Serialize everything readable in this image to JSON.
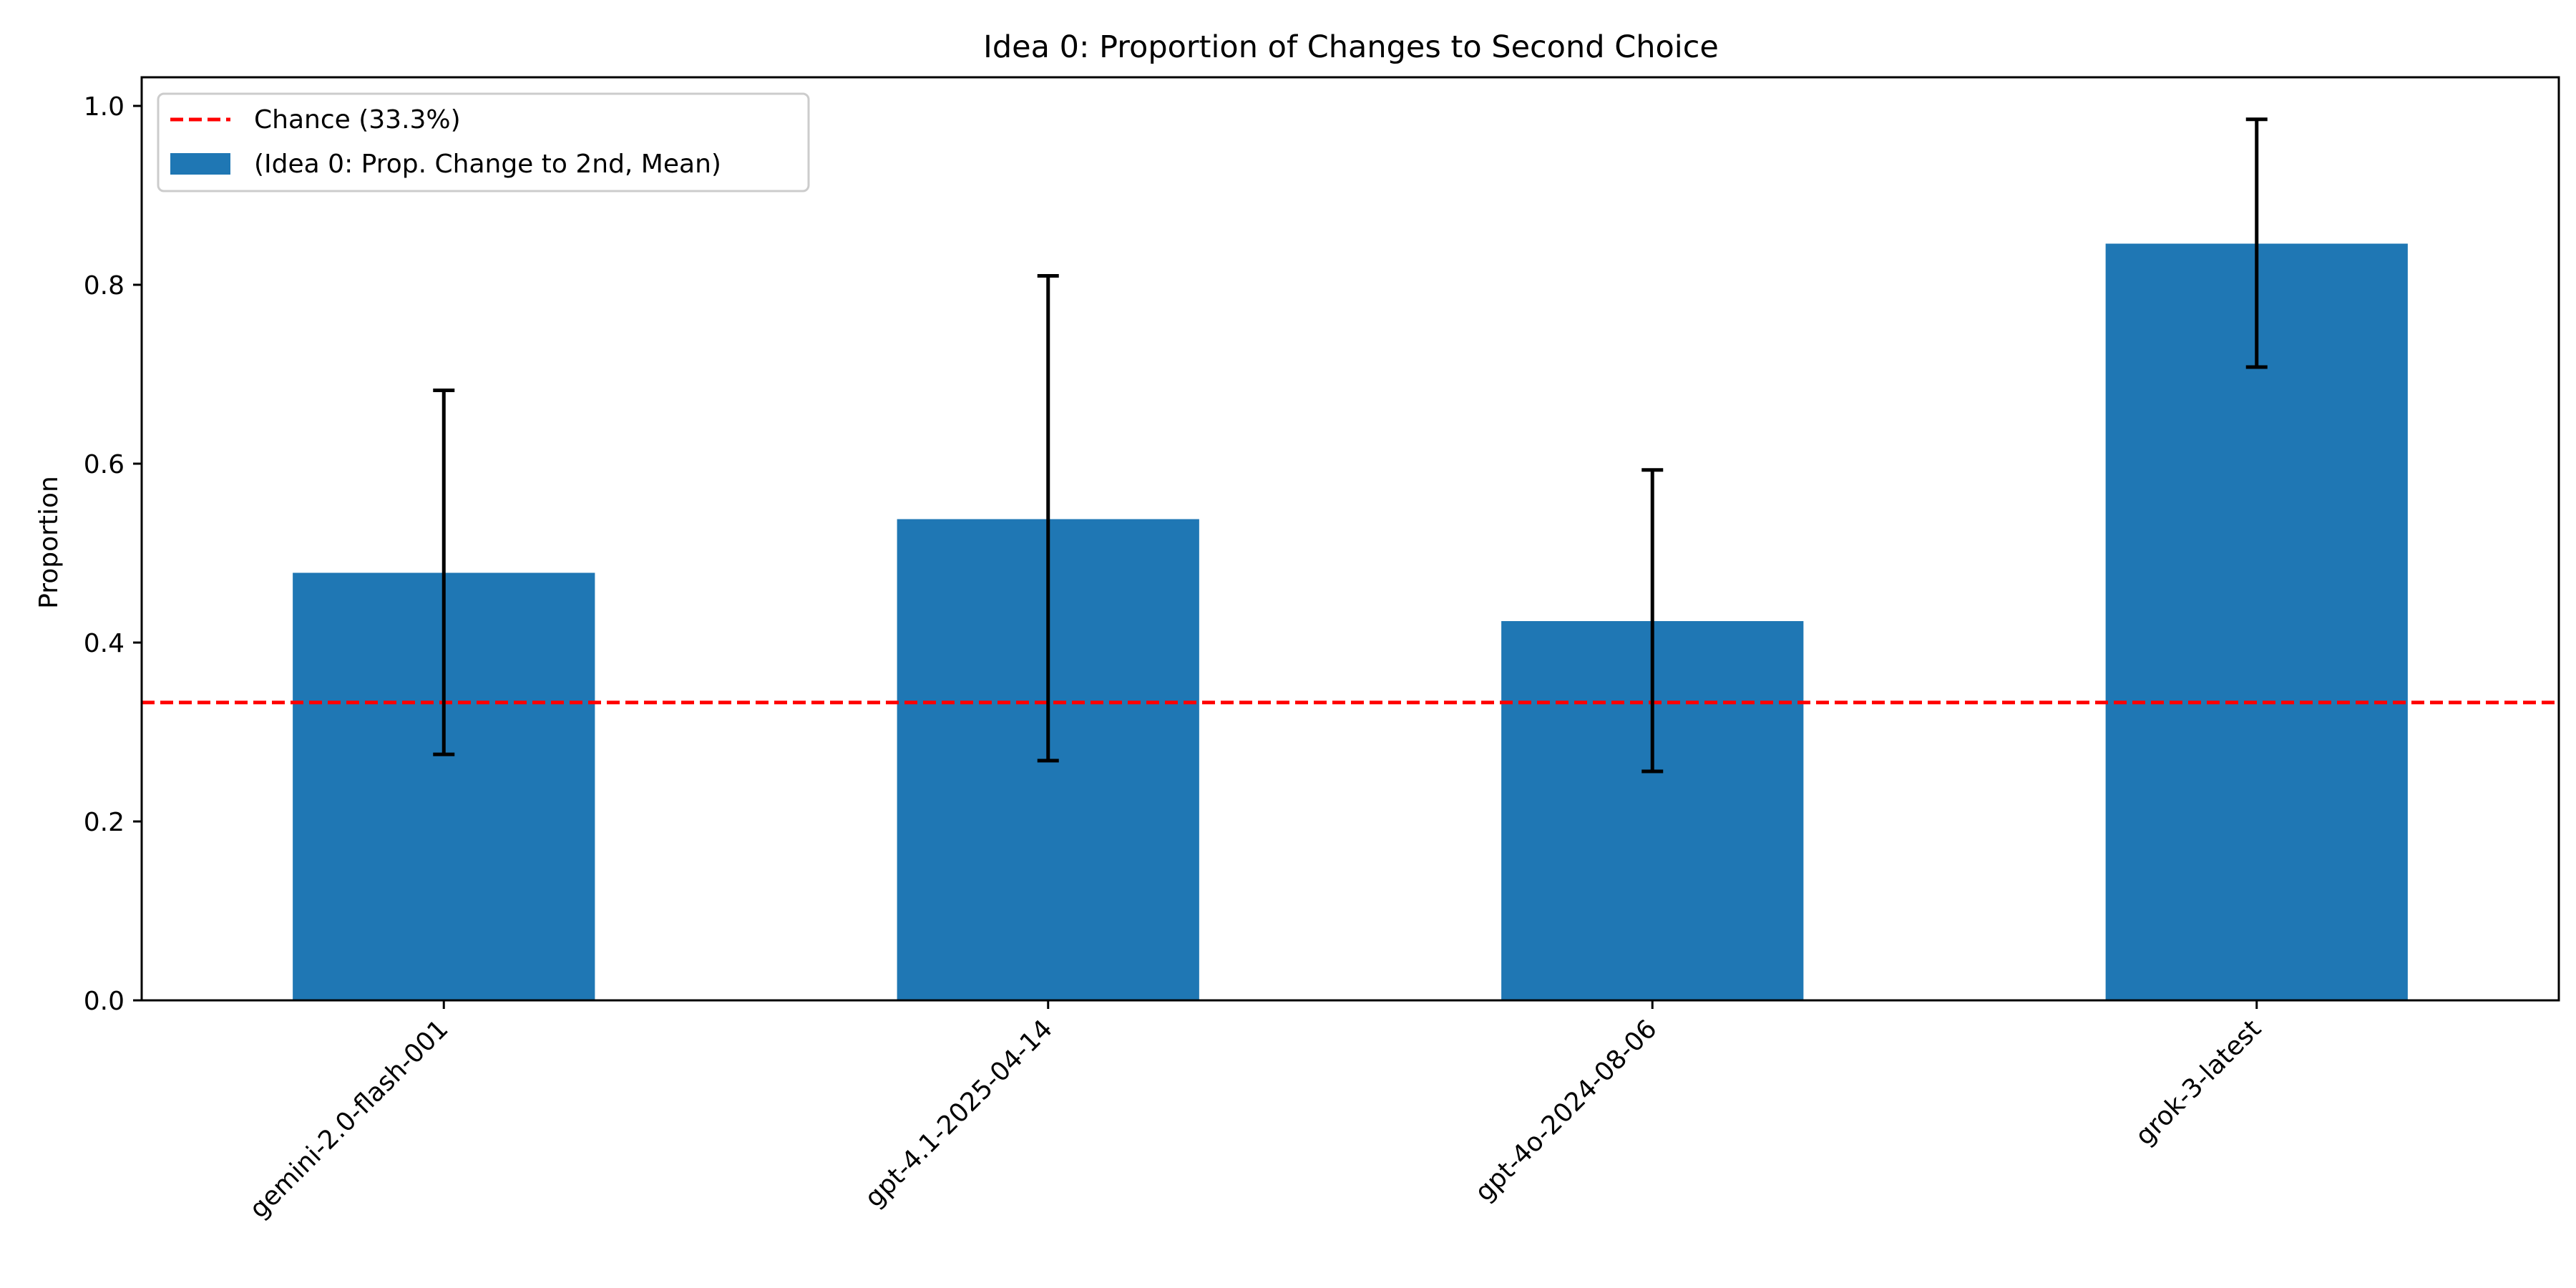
{
  "chart_data": {
    "type": "bar",
    "title": "Idea 0: Proportion of Changes to Second Choice",
    "xlabel": "",
    "ylabel": "Proportion",
    "ylim": [
      0,
      1.032
    ],
    "yticks": [
      "0.0",
      "0.2",
      "0.4",
      "0.6",
      "0.8",
      "1.0"
    ],
    "categories": [
      "gemini-2.0-flash-001",
      "gpt-4.1-2025-04-14",
      "gpt-4o-2024-08-06",
      "grok-3-latest"
    ],
    "series": [
      {
        "name": "(Idea 0: Prop. Change to 2nd, Mean)",
        "values": [
          0.478,
          0.538,
          0.424,
          0.846
        ],
        "error_low": [
          0.275,
          0.268,
          0.256,
          0.708
        ],
        "error_high": [
          0.682,
          0.81,
          0.593,
          0.985
        ],
        "color": "#1f77b4"
      }
    ],
    "reference_line": {
      "label": "Chance (33.3%)",
      "value": 0.333,
      "color": "#ff0000",
      "style": "dashed"
    },
    "legend_position": "top-left",
    "grid": false
  }
}
